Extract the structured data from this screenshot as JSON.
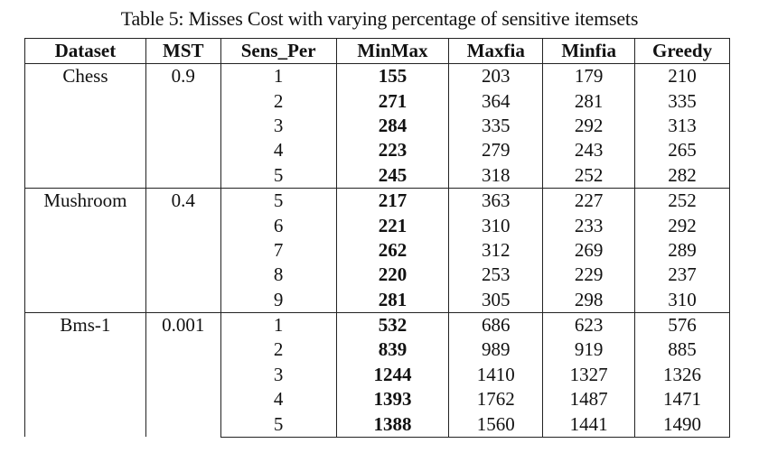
{
  "caption": "Table 5: Misses Cost with varying percentage of sensitive itemsets",
  "headers": [
    "Dataset",
    "MST",
    "Sens_Per",
    "MinMax",
    "Maxfia",
    "Minfia",
    "Greedy"
  ],
  "groups": [
    {
      "dataset": "Chess",
      "mst": "0.9",
      "rows": [
        [
          "1",
          "155",
          "203",
          "179",
          "210"
        ],
        [
          "2",
          "271",
          "364",
          "281",
          "335"
        ],
        [
          "3",
          "284",
          "335",
          "292",
          "313"
        ],
        [
          "4",
          "223",
          "279",
          "243",
          "265"
        ],
        [
          "5",
          "245",
          "318",
          "252",
          "282"
        ]
      ]
    },
    {
      "dataset": "Mushroom",
      "mst": "0.4",
      "rows": [
        [
          "5",
          "217",
          "363",
          "227",
          "252"
        ],
        [
          "6",
          "221",
          "310",
          "233",
          "292"
        ],
        [
          "7",
          "262",
          "312",
          "269",
          "289"
        ],
        [
          "8",
          "220",
          "253",
          "229",
          "237"
        ],
        [
          "9",
          "281",
          "305",
          "298",
          "310"
        ]
      ]
    },
    {
      "dataset": "Bms-1",
      "mst": "0.001",
      "rows": [
        [
          "1",
          "532",
          "686",
          "623",
          "576"
        ],
        [
          "2",
          "839",
          "989",
          "919",
          "885"
        ],
        [
          "3",
          "1244",
          "1410",
          "1327",
          "1326"
        ],
        [
          "4",
          "1393",
          "1762",
          "1487",
          "1471"
        ],
        [
          "5",
          "1388",
          "1560",
          "1441",
          "1490"
        ]
      ]
    }
  ]
}
